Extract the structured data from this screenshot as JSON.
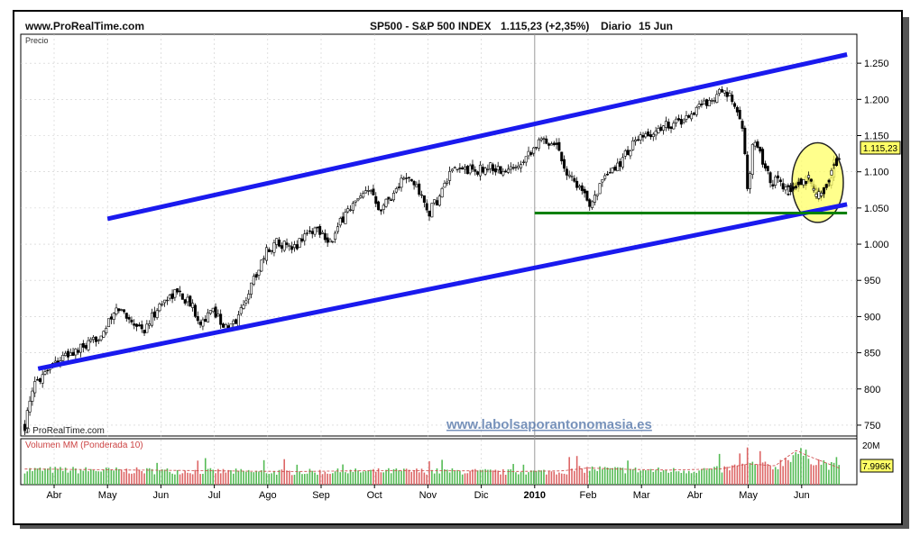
{
  "header": {
    "site": "www.ProRealTime.com",
    "title": "SP500 - S&P 500 INDEX",
    "price": "1.115,23 (+2,35%)",
    "period": "Diario",
    "date": "15 Jun"
  },
  "price_panel": {
    "label": "Precio",
    "copyright": "© ProRealTime.com",
    "watermark": "www.labolsaporantonomasia.es",
    "last_price_tag": "1.115,23",
    "colors": {
      "channel": "#1a1aee",
      "support": "#008000",
      "highlight": "#ffff66",
      "highlight_border": "#222222"
    }
  },
  "volume_panel": {
    "label": "Volumen MM (Ponderada 10)",
    "scale_top": "20M",
    "last_volume_tag": "7.996K"
  },
  "chart_data": [
    {
      "type": "candlestick",
      "title": "SP500 - S&P 500 INDEX",
      "ylim": [
        735,
        1290
      ],
      "y_ticks": [
        {
          "value": 750,
          "label": "750"
        },
        {
          "value": 800,
          "label": "800"
        },
        {
          "value": 850,
          "label": "850"
        },
        {
          "value": 900,
          "label": "900"
        },
        {
          "value": 950,
          "label": "950"
        },
        {
          "value": 1000,
          "label": "1.000"
        },
        {
          "value": 1050,
          "label": "1.050"
        },
        {
          "value": 1100,
          "label": "1.100"
        },
        {
          "value": 1150,
          "label": "1.150"
        },
        {
          "value": 1200,
          "label": "1.200"
        },
        {
          "value": 1250,
          "label": "1.250"
        }
      ],
      "x_ticks": [
        {
          "month": 0,
          "label": "Abr"
        },
        {
          "month": 1,
          "label": "May"
        },
        {
          "month": 2,
          "label": "Jun"
        },
        {
          "month": 3,
          "label": "Jul"
        },
        {
          "month": 4,
          "label": "Ago"
        },
        {
          "month": 5,
          "label": "Sep"
        },
        {
          "month": 6,
          "label": "Oct"
        },
        {
          "month": 7,
          "label": "Nov"
        },
        {
          "month": 8,
          "label": "Dic"
        },
        {
          "month": 9,
          "label": "2010"
        },
        {
          "month": 10,
          "label": "Feb"
        },
        {
          "month": 11,
          "label": "Mar"
        },
        {
          "month": 12,
          "label": "Abr"
        },
        {
          "month": 13,
          "label": "May"
        },
        {
          "month": 14,
          "label": "Jun"
        }
      ],
      "close_path": [
        [
          -0.55,
          750
        ],
        [
          -0.35,
          810
        ],
        [
          -0.05,
          835
        ],
        [
          0.3,
          848
        ],
        [
          0.7,
          862
        ],
        [
          1.0,
          888
        ],
        [
          1.2,
          912
        ],
        [
          1.45,
          895
        ],
        [
          1.7,
          880
        ],
        [
          1.9,
          908
        ],
        [
          2.1,
          925
        ],
        [
          2.3,
          935
        ],
        [
          2.55,
          918
        ],
        [
          2.75,
          893
        ],
        [
          3.0,
          908
        ],
        [
          3.25,
          880
        ],
        [
          3.45,
          900
        ],
        [
          3.7,
          945
        ],
        [
          3.95,
          988
        ],
        [
          4.2,
          1005
        ],
        [
          4.45,
          990
        ],
        [
          4.7,
          1015
        ],
        [
          4.95,
          1022
        ],
        [
          5.2,
          1002
        ],
        [
          5.45,
          1044
        ],
        [
          5.7,
          1060
        ],
        [
          5.95,
          1075
        ],
        [
          6.1,
          1050
        ],
        [
          6.35,
          1070
        ],
        [
          6.55,
          1092
        ],
        [
          6.8,
          1080
        ],
        [
          7.0,
          1042
        ],
        [
          7.2,
          1063
        ],
        [
          7.4,
          1095
        ],
        [
          7.65,
          1105
        ],
        [
          7.9,
          1100
        ],
        [
          8.15,
          1108
        ],
        [
          8.45,
          1098
        ],
        [
          8.7,
          1112
        ],
        [
          8.95,
          1132
        ],
        [
          9.15,
          1144
        ],
        [
          9.4,
          1140
        ],
        [
          9.6,
          1100
        ],
        [
          9.8,
          1083
        ],
        [
          10.0,
          1055
        ],
        [
          10.2,
          1078
        ],
        [
          10.45,
          1100
        ],
        [
          10.65,
          1118
        ],
        [
          10.85,
          1140
        ],
        [
          11.15,
          1150
        ],
        [
          11.45,
          1165
        ],
        [
          11.75,
          1170
        ],
        [
          12.0,
          1185
        ],
        [
          12.2,
          1196
        ],
        [
          12.35,
          1203
        ],
        [
          12.5,
          1210
        ],
        [
          12.65,
          1202
        ],
        [
          12.8,
          1185
        ],
        [
          12.9,
          1150
        ],
        [
          13.0,
          1070
        ],
        [
          13.1,
          1150
        ],
        [
          13.3,
          1110
        ],
        [
          13.45,
          1085
        ],
        [
          13.55,
          1090
        ],
        [
          13.75,
          1075
        ],
        [
          13.95,
          1083
        ],
        [
          14.15,
          1090
        ],
        [
          14.3,
          1065
        ],
        [
          14.5,
          1080
        ],
        [
          14.6,
          1110
        ],
        [
          14.7,
          1115
        ]
      ],
      "annotations": [
        {
          "kind": "channel-upper",
          "from": [
            1.0,
            1035
          ],
          "to": [
            14.85,
            1262
          ]
        },
        {
          "kind": "channel-lower",
          "from": [
            -0.3,
            828
          ],
          "to": [
            14.85,
            1055
          ]
        },
        {
          "kind": "support",
          "from": [
            9.0,
            1043
          ],
          "to": [
            14.85,
            1043
          ],
          "value": 1043
        },
        {
          "kind": "highlight-ellipse",
          "center": [
            14.3,
            1085
          ],
          "rx_months": 0.48,
          "ry_value": 55
        }
      ]
    },
    {
      "type": "bar",
      "title": "Volumen MM (Ponderada 10)",
      "ylim": [
        0,
        20
      ],
      "unit": "M",
      "volume_path": [
        [
          -0.55,
          7.5
        ],
        [
          0.5,
          7.3
        ],
        [
          1.5,
          7.0
        ],
        [
          2.5,
          6.8
        ],
        [
          3.5,
          6.5
        ],
        [
          4.5,
          6.3
        ],
        [
          5.5,
          6.6
        ],
        [
          6.5,
          6.8
        ],
        [
          7.5,
          6.7
        ],
        [
          8.5,
          6.3
        ],
        [
          9.5,
          6.6
        ],
        [
          10.0,
          8.0
        ],
        [
          10.5,
          7.5
        ],
        [
          11.5,
          7.0
        ],
        [
          12.5,
          7.6
        ],
        [
          13.0,
          10.0
        ],
        [
          13.5,
          9.0
        ],
        [
          13.9,
          16.5
        ],
        [
          14.1,
          14.0
        ],
        [
          14.4,
          11.0
        ],
        [
          14.7,
          8.0
        ]
      ]
    }
  ]
}
